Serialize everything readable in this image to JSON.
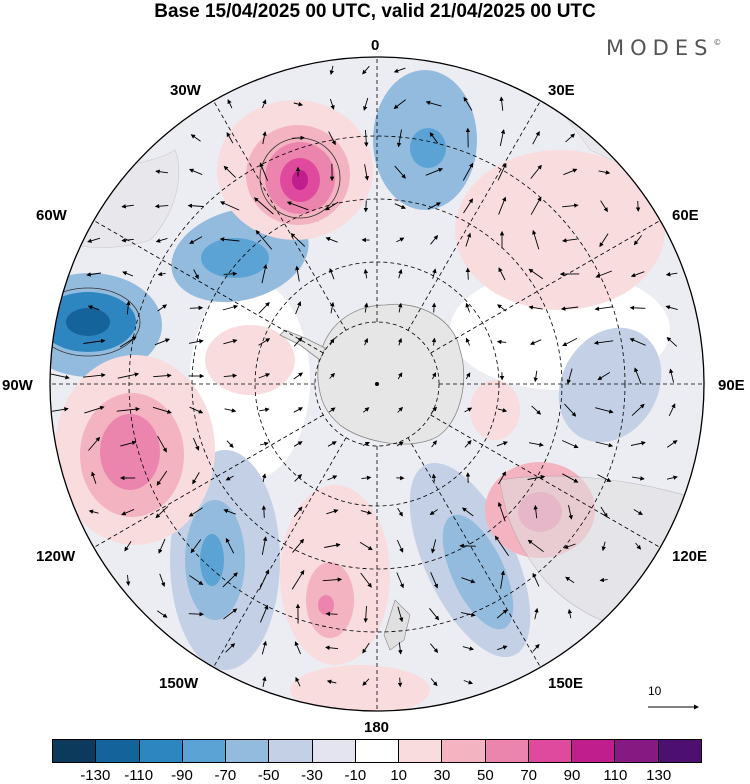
{
  "title": "Base 15/04/2025 00 UTC, valid 21/04/2025 00 UTC",
  "brand": "MODES",
  "brand_mark": "©",
  "longitude_labels": {
    "top": "0",
    "e30": "30E",
    "e60": "60E",
    "e90": "90E",
    "e120": "120E",
    "e150": "150E",
    "bottom": "180",
    "w150": "150W",
    "w120": "120W",
    "w90": "90W",
    "w60": "60W",
    "w30": "30W"
  },
  "vector_reference": "10",
  "colorbar": {
    "ticks": [
      "-130",
      "-110",
      "-90",
      "-70",
      "-50",
      "-30",
      "-10",
      "10",
      "30",
      "50",
      "70",
      "90",
      "110",
      "130"
    ],
    "colors": [
      "#0c3a5c",
      "#14639a",
      "#2e86c1",
      "#5aa3d4",
      "#93bbde",
      "#c3d0e6",
      "#e4e4f0",
      "#ffffff",
      "#f8dcde",
      "#f3b3c0",
      "#ec85ae",
      "#df4a9e",
      "#bf1e8c",
      "#871a82",
      "#4d1070"
    ]
  },
  "colors": {
    "antarctica": "#e6e6e6",
    "land": "#d8d8d8",
    "graticule": "#000000"
  }
}
